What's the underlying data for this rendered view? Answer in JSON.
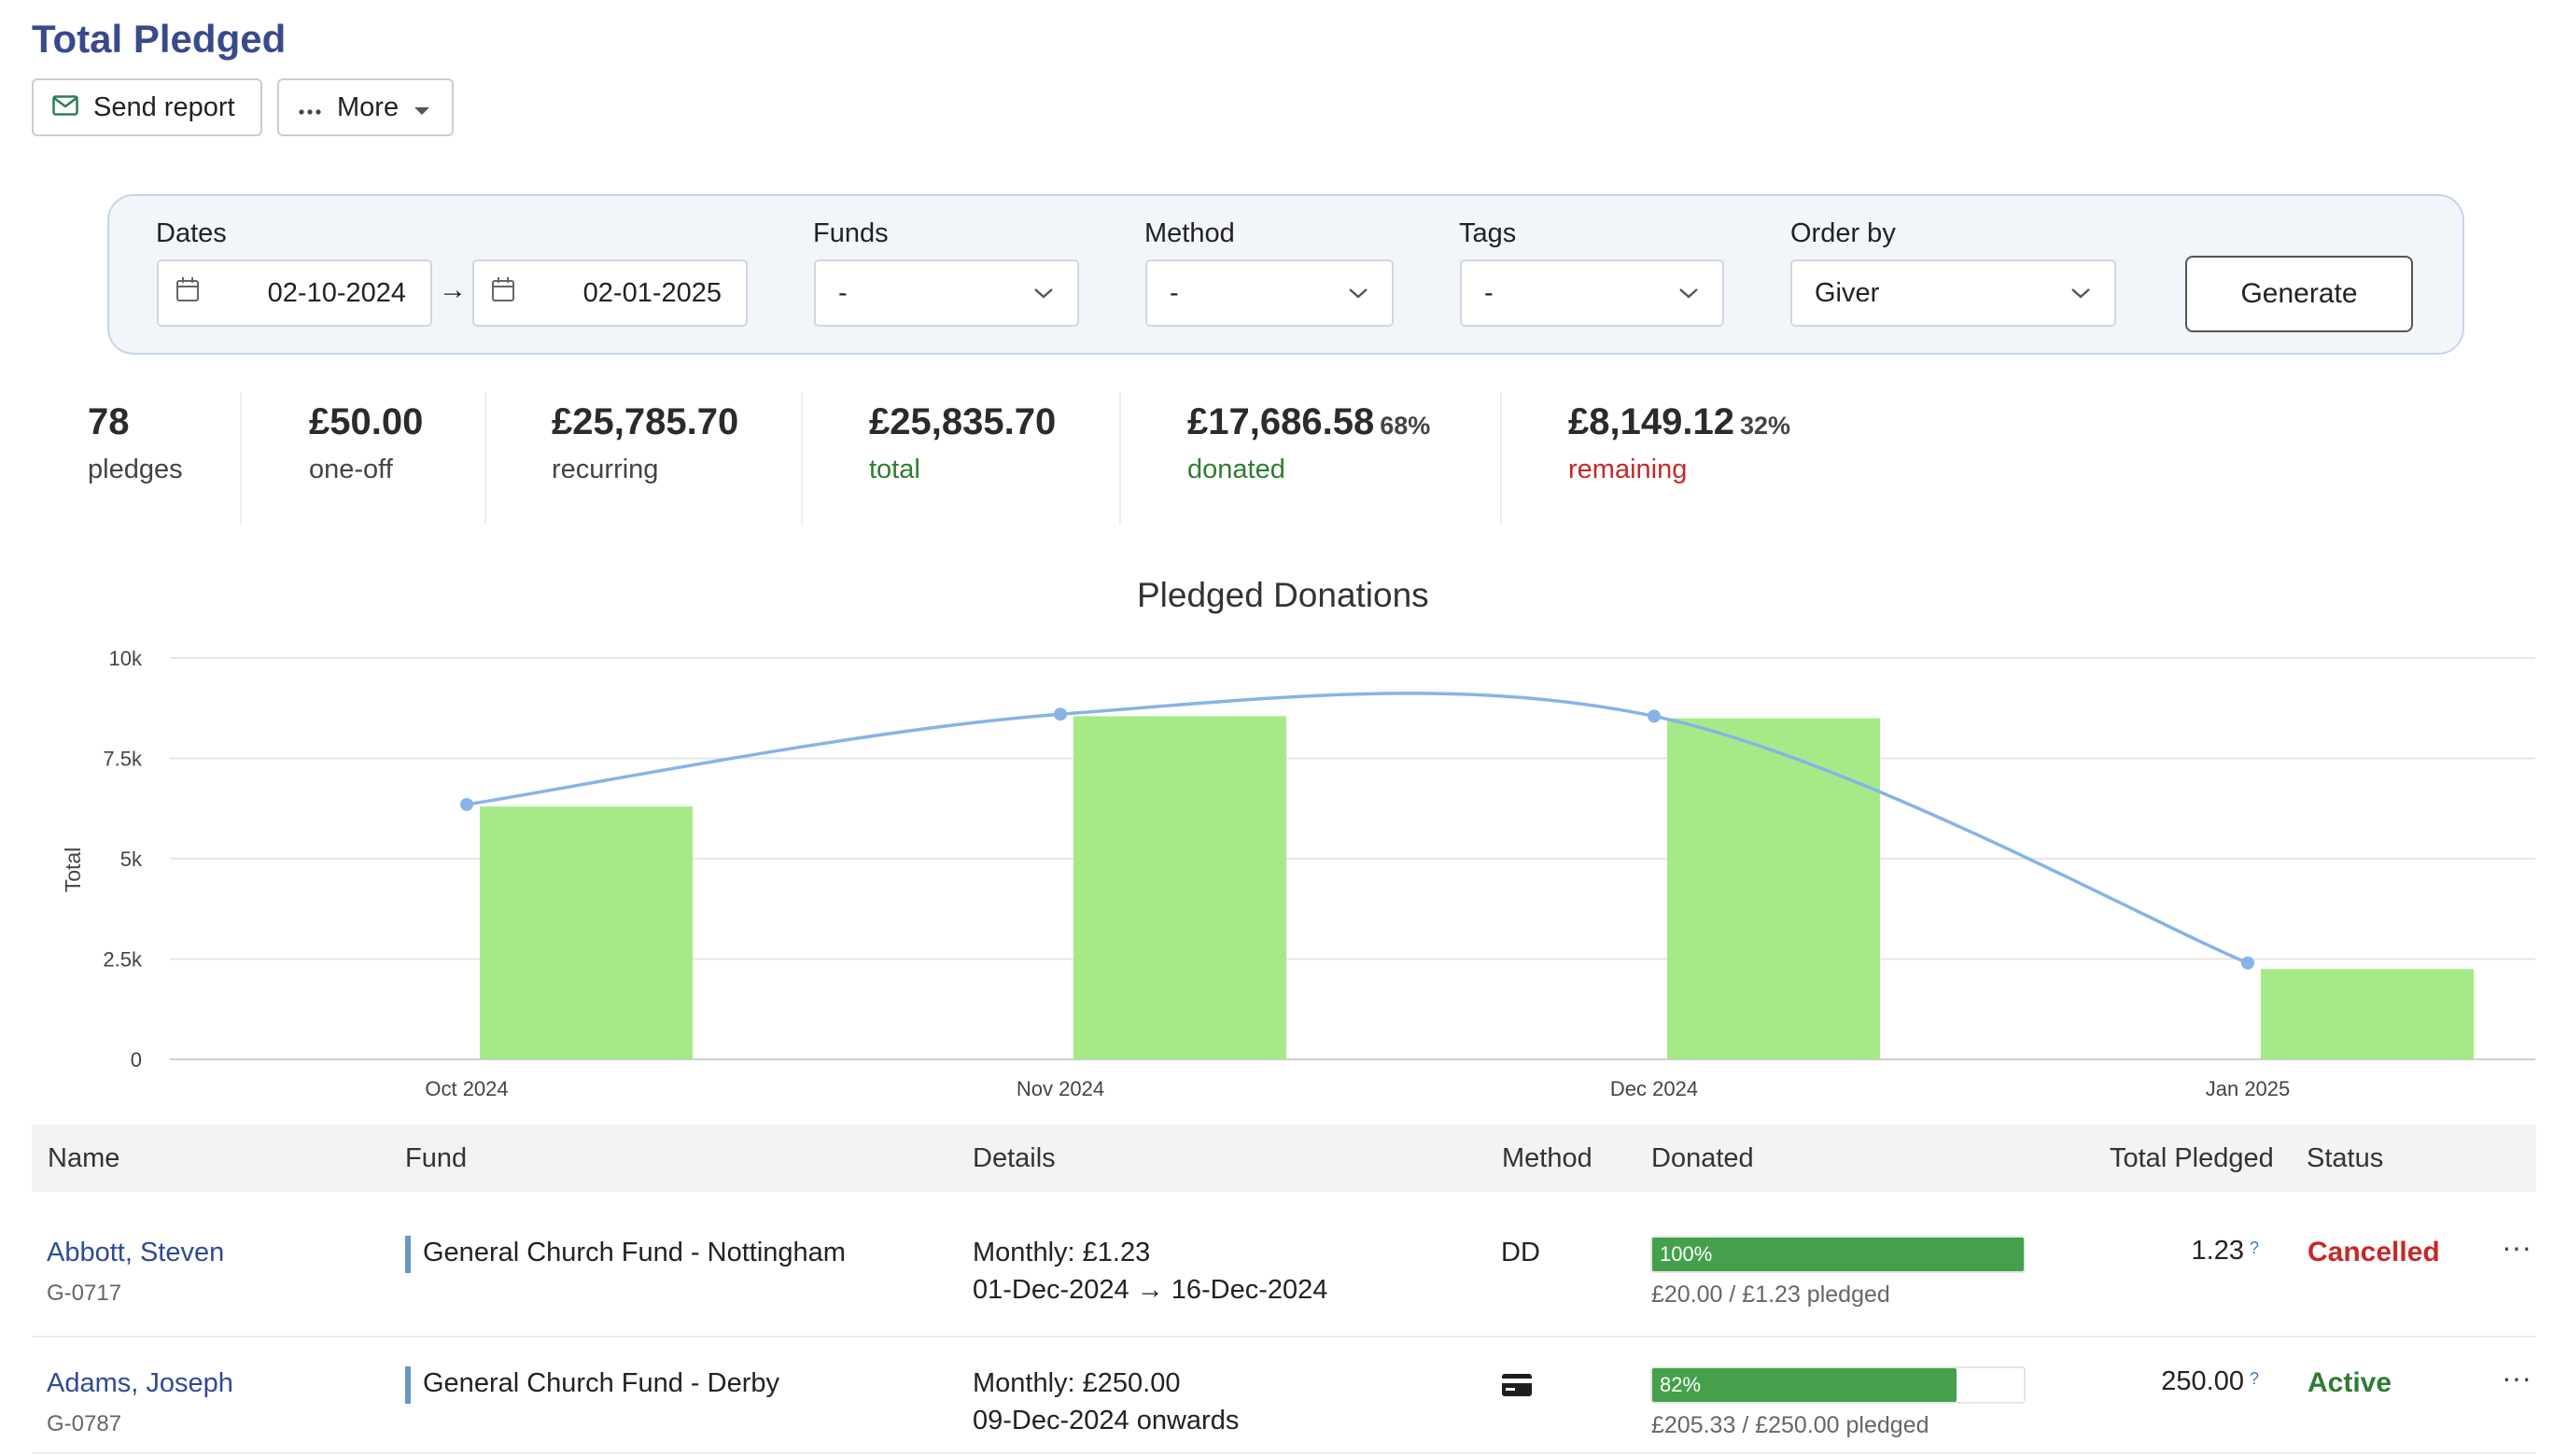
{
  "header": {
    "title": "Total Pledged",
    "send_report_label": "Send report",
    "more_label": "More"
  },
  "filters": {
    "dates_label": "Dates",
    "date_from": "02-10-2024",
    "date_arrow": "→",
    "date_to": "02-01-2025",
    "funds_label": "Funds",
    "funds_value": "-",
    "method_label": "Method",
    "method_value": "-",
    "tags_label": "Tags",
    "tags_value": "-",
    "order_label": "Order by",
    "order_value": "Giver",
    "generate_label": "Generate"
  },
  "stats": [
    {
      "value": "78",
      "pct": "",
      "label": "pledges",
      "label_color": "#444444"
    },
    {
      "value": "£50.00",
      "pct": "",
      "label": "one-off",
      "label_color": "#444444"
    },
    {
      "value": "£25,785.70",
      "pct": "",
      "label": "recurring",
      "label_color": "#444444"
    },
    {
      "value": "£25,835.70",
      "pct": "",
      "label": "total",
      "label_color": "#2e7d32"
    },
    {
      "value": "£17,686.58",
      "pct": "68%",
      "label": "donated",
      "label_color": "#2e7d32"
    },
    {
      "value": "£8,149.12",
      "pct": "32%",
      "label": "remaining",
      "label_color": "#c62828"
    }
  ],
  "chart_data": {
    "type": "bar",
    "title": "Pledged Donations",
    "ylabel": "Total",
    "xlabel": "",
    "categories": [
      "Oct 2024",
      "Nov 2024",
      "Dec 2024",
      "Jan 2025"
    ],
    "yticks": [
      "0",
      "2.5k",
      "5k",
      "7.5k",
      "10k"
    ],
    "ylim": [
      0,
      10000
    ],
    "series": [
      {
        "type": "bar",
        "values": [
          6300,
          8550,
          8500,
          2250
        ],
        "color": "#a6ea88"
      },
      {
        "type": "line",
        "values": [
          6350,
          8600,
          8550,
          2400
        ],
        "color": "#86b4e6"
      }
    ],
    "grid": true
  },
  "table": {
    "headers": {
      "name": "Name",
      "fund": "Fund",
      "details": "Details",
      "method": "Method",
      "donated": "Donated",
      "total_pledged": "Total Pledged",
      "status": "Status"
    },
    "rows": [
      {
        "name": "Abbott, Steven",
        "id": "G-0717",
        "fund": "General Church Fund - Nottingham",
        "details_line1": "Monthly: £1.23",
        "details_line2": "01-Dec-2024 → 16-Dec-2024",
        "method": "DD",
        "method_icon": "",
        "progress": 1.0,
        "progress_label": "100%",
        "donated_text": "£20.00 / £1.23 pledged",
        "total_pledged": "1.23",
        "help_icon": "?",
        "status": "Cancelled",
        "status_color": "#c62828",
        "menu_icon": "···"
      },
      {
        "name": "Adams, Joseph",
        "id": "G-0787",
        "fund": "General Church Fund - Derby",
        "details_line1": "Monthly: £250.00",
        "details_line2": "09-Dec-2024 onwards",
        "method": "",
        "method_icon": "card-icon",
        "progress": 0.82,
        "progress_label": "82%",
        "donated_text": "£205.33 / £250.00 pledged",
        "total_pledged": "250.00",
        "help_icon": "?",
        "status": "Active",
        "status_color": "#2e7d32",
        "menu_icon": "···"
      }
    ]
  }
}
